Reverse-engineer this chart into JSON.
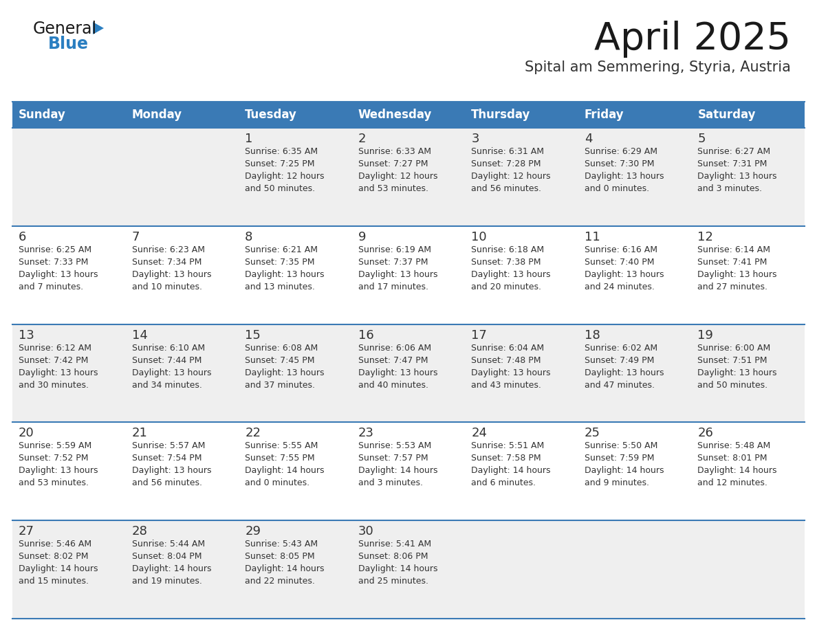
{
  "title": "April 2025",
  "subtitle": "Spital am Semmering, Styria, Austria",
  "days_of_week": [
    "Sunday",
    "Monday",
    "Tuesday",
    "Wednesday",
    "Thursday",
    "Friday",
    "Saturday"
  ],
  "header_bg": "#3a7ab5",
  "header_text": "#ffffff",
  "row_bg_odd": "#efefef",
  "row_bg_even": "#ffffff",
  "separator_color": "#3a7ab5",
  "day_num_color": "#333333",
  "info_color": "#333333",
  "title_color": "#1a1a1a",
  "subtitle_color": "#333333",
  "logo_general_color": "#1a1a1a",
  "logo_blue_color": "#2b7fc1",
  "weeks": [
    [
      {
        "day": null,
        "info": ""
      },
      {
        "day": null,
        "info": ""
      },
      {
        "day": 1,
        "info": "Sunrise: 6:35 AM\nSunset: 7:25 PM\nDaylight: 12 hours\nand 50 minutes."
      },
      {
        "day": 2,
        "info": "Sunrise: 6:33 AM\nSunset: 7:27 PM\nDaylight: 12 hours\nand 53 minutes."
      },
      {
        "day": 3,
        "info": "Sunrise: 6:31 AM\nSunset: 7:28 PM\nDaylight: 12 hours\nand 56 minutes."
      },
      {
        "day": 4,
        "info": "Sunrise: 6:29 AM\nSunset: 7:30 PM\nDaylight: 13 hours\nand 0 minutes."
      },
      {
        "day": 5,
        "info": "Sunrise: 6:27 AM\nSunset: 7:31 PM\nDaylight: 13 hours\nand 3 minutes."
      }
    ],
    [
      {
        "day": 6,
        "info": "Sunrise: 6:25 AM\nSunset: 7:33 PM\nDaylight: 13 hours\nand 7 minutes."
      },
      {
        "day": 7,
        "info": "Sunrise: 6:23 AM\nSunset: 7:34 PM\nDaylight: 13 hours\nand 10 minutes."
      },
      {
        "day": 8,
        "info": "Sunrise: 6:21 AM\nSunset: 7:35 PM\nDaylight: 13 hours\nand 13 minutes."
      },
      {
        "day": 9,
        "info": "Sunrise: 6:19 AM\nSunset: 7:37 PM\nDaylight: 13 hours\nand 17 minutes."
      },
      {
        "day": 10,
        "info": "Sunrise: 6:18 AM\nSunset: 7:38 PM\nDaylight: 13 hours\nand 20 minutes."
      },
      {
        "day": 11,
        "info": "Sunrise: 6:16 AM\nSunset: 7:40 PM\nDaylight: 13 hours\nand 24 minutes."
      },
      {
        "day": 12,
        "info": "Sunrise: 6:14 AM\nSunset: 7:41 PM\nDaylight: 13 hours\nand 27 minutes."
      }
    ],
    [
      {
        "day": 13,
        "info": "Sunrise: 6:12 AM\nSunset: 7:42 PM\nDaylight: 13 hours\nand 30 minutes."
      },
      {
        "day": 14,
        "info": "Sunrise: 6:10 AM\nSunset: 7:44 PM\nDaylight: 13 hours\nand 34 minutes."
      },
      {
        "day": 15,
        "info": "Sunrise: 6:08 AM\nSunset: 7:45 PM\nDaylight: 13 hours\nand 37 minutes."
      },
      {
        "day": 16,
        "info": "Sunrise: 6:06 AM\nSunset: 7:47 PM\nDaylight: 13 hours\nand 40 minutes."
      },
      {
        "day": 17,
        "info": "Sunrise: 6:04 AM\nSunset: 7:48 PM\nDaylight: 13 hours\nand 43 minutes."
      },
      {
        "day": 18,
        "info": "Sunrise: 6:02 AM\nSunset: 7:49 PM\nDaylight: 13 hours\nand 47 minutes."
      },
      {
        "day": 19,
        "info": "Sunrise: 6:00 AM\nSunset: 7:51 PM\nDaylight: 13 hours\nand 50 minutes."
      }
    ],
    [
      {
        "day": 20,
        "info": "Sunrise: 5:59 AM\nSunset: 7:52 PM\nDaylight: 13 hours\nand 53 minutes."
      },
      {
        "day": 21,
        "info": "Sunrise: 5:57 AM\nSunset: 7:54 PM\nDaylight: 13 hours\nand 56 minutes."
      },
      {
        "day": 22,
        "info": "Sunrise: 5:55 AM\nSunset: 7:55 PM\nDaylight: 14 hours\nand 0 minutes."
      },
      {
        "day": 23,
        "info": "Sunrise: 5:53 AM\nSunset: 7:57 PM\nDaylight: 14 hours\nand 3 minutes."
      },
      {
        "day": 24,
        "info": "Sunrise: 5:51 AM\nSunset: 7:58 PM\nDaylight: 14 hours\nand 6 minutes."
      },
      {
        "day": 25,
        "info": "Sunrise: 5:50 AM\nSunset: 7:59 PM\nDaylight: 14 hours\nand 9 minutes."
      },
      {
        "day": 26,
        "info": "Sunrise: 5:48 AM\nSunset: 8:01 PM\nDaylight: 14 hours\nand 12 minutes."
      }
    ],
    [
      {
        "day": 27,
        "info": "Sunrise: 5:46 AM\nSunset: 8:02 PM\nDaylight: 14 hours\nand 15 minutes."
      },
      {
        "day": 28,
        "info": "Sunrise: 5:44 AM\nSunset: 8:04 PM\nDaylight: 14 hours\nand 19 minutes."
      },
      {
        "day": 29,
        "info": "Sunrise: 5:43 AM\nSunset: 8:05 PM\nDaylight: 14 hours\nand 22 minutes."
      },
      {
        "day": 30,
        "info": "Sunrise: 5:41 AM\nSunset: 8:06 PM\nDaylight: 14 hours\nand 25 minutes."
      },
      {
        "day": null,
        "info": ""
      },
      {
        "day": null,
        "info": ""
      },
      {
        "day": null,
        "info": ""
      }
    ]
  ]
}
